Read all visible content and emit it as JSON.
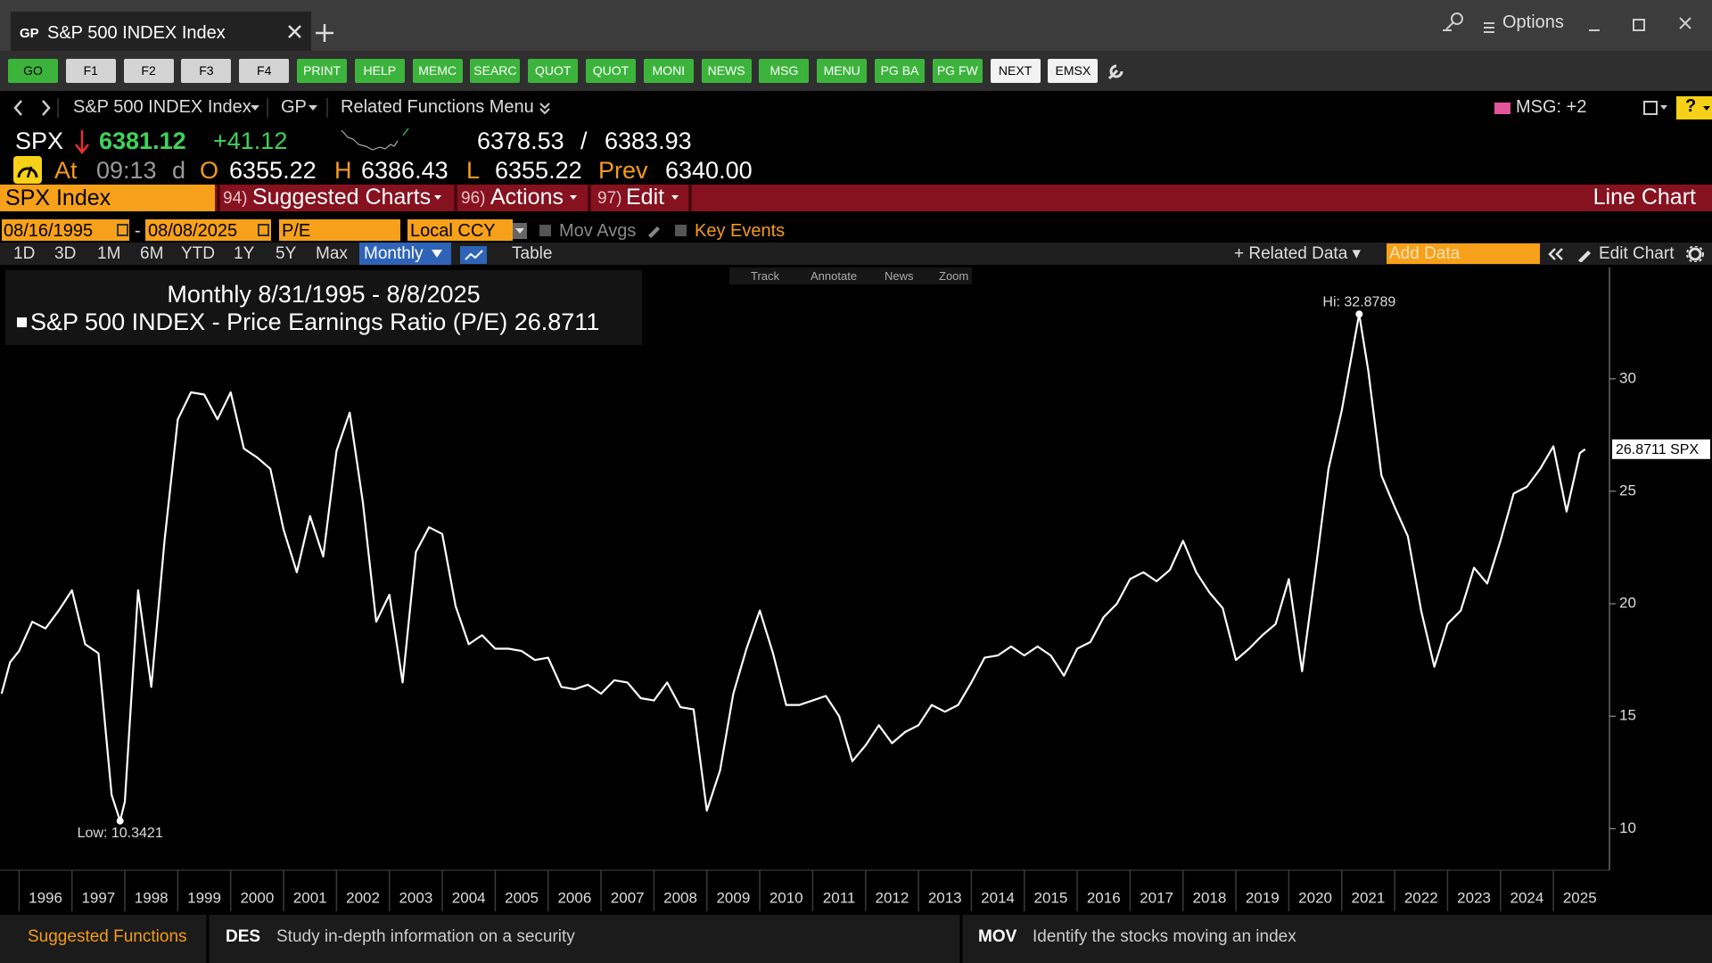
{
  "window": {
    "tab_code": "GP",
    "tab_title": "S&P 500 INDEX Index",
    "options": "Options"
  },
  "toolbar": [
    "GO",
    "F1",
    "F2",
    "F3",
    "F4",
    "PRINT",
    "HELP",
    "MEMC",
    "SEARC",
    "QUOT",
    "QUOT",
    "MONI",
    "NEWS",
    "MSG",
    "MENU",
    "PG BA",
    "PG FW",
    "NEXT",
    "EMSX"
  ],
  "nav": {
    "security": "S&P 500 INDEX Index",
    "function": "GP",
    "menu": "Related Functions Menu",
    "messages": "MSG: +2"
  },
  "quote": {
    "ticker": "SPX",
    "last": "6381.12",
    "change": "+41.12",
    "bid": "6378.53",
    "separator": "/",
    "ask": "6383.93",
    "at": "At",
    "time": "09:13",
    "day": "d",
    "open_label": "O",
    "open": "6355.22",
    "high_label": "H",
    "high": "6386.43",
    "low_label": "L",
    "low": "6355.22",
    "prev_label": "Prev",
    "prev": "6340.00"
  },
  "menu_bar": {
    "security": "SPX Index",
    "items": [
      {
        "number": "94)",
        "label": "Suggested Charts"
      },
      {
        "number": "96)",
        "label": "Actions"
      },
      {
        "number": "97)",
        "label": "Edit"
      }
    ],
    "chart_type": "Line Chart"
  },
  "controls": {
    "start_date": "08/16/1995",
    "date_separator": "-",
    "end_date": "08/08/2025",
    "field": "P/E",
    "currency": "Local CCY",
    "moving_averages": "Mov Avgs",
    "key_events": "Key Events",
    "periods": [
      "1D",
      "3D",
      "1M",
      "6M",
      "YTD",
      "1Y",
      "5Y",
      "Max"
    ],
    "frequency": "Monthly",
    "table": "Table",
    "related_data": "Related Data",
    "add_data": "Add Data",
    "edit_chart": "Edit Chart"
  },
  "chart_tools": [
    "Track",
    "Annotate",
    "News",
    "Zoom"
  ],
  "chart_data": {
    "type": "line",
    "subtitle": "Monthly 8/31/1995 - 8/8/2025",
    "x": [
      1995.67,
      1995.83,
      1996,
      1996.25,
      1996.5,
      1996.75,
      1997,
      1997.25,
      1997.5,
      1997.75,
      1997.91,
      1998,
      1998.25,
      1998.5,
      1998.75,
      1999,
      1999.25,
      1999.5,
      1999.75,
      2000,
      2000.25,
      2000.5,
      2000.75,
      2001,
      2001.25,
      2001.5,
      2001.75,
      2002,
      2002.25,
      2002.5,
      2002.75,
      2003,
      2003.25,
      2003.5,
      2003.75,
      2004,
      2004.25,
      2004.5,
      2004.75,
      2005,
      2005.25,
      2005.5,
      2005.75,
      2006,
      2006.25,
      2006.5,
      2006.75,
      2007,
      2007.25,
      2007.5,
      2007.75,
      2008,
      2008.25,
      2008.5,
      2008.75,
      2009,
      2009.25,
      2009.5,
      2009.75,
      2010,
      2010.25,
      2010.5,
      2010.75,
      2011,
      2011.25,
      2011.5,
      2011.75,
      2012,
      2012.25,
      2012.5,
      2012.75,
      2013,
      2013.25,
      2013.5,
      2013.75,
      2014,
      2014.25,
      2014.5,
      2014.75,
      2015,
      2015.25,
      2015.5,
      2015.75,
      2016,
      2016.25,
      2016.5,
      2016.75,
      2017,
      2017.25,
      2017.5,
      2017.75,
      2018,
      2018.25,
      2018.5,
      2018.75,
      2019,
      2019.25,
      2019.5,
      2019.75,
      2020,
      2020.25,
      2020.5,
      2020.75,
      2021,
      2021.33,
      2021.5,
      2021.75,
      2022,
      2022.25,
      2022.5,
      2022.75,
      2023,
      2023.25,
      2023.5,
      2023.75,
      2024,
      2024.25,
      2024.5,
      2024.75,
      2025,
      2025.25,
      2025.5,
      2025.6
    ],
    "series": [
      {
        "name": "S&P 500 INDEX - Price Earnings Ratio (P/E)",
        "color": "#ffffff",
        "values": [
          16.0,
          17.4,
          17.9,
          19.2,
          18.9,
          19.7,
          20.6,
          18.2,
          17.8,
          11.5,
          10.3421,
          11.2,
          20.6,
          16.3,
          22.8,
          28.2,
          29.4,
          29.3,
          28.2,
          29.4,
          26.9,
          26.5,
          26.0,
          23.3,
          21.4,
          23.9,
          22.1,
          26.8,
          28.5,
          24.5,
          19.2,
          20.4,
          16.5,
          22.3,
          23.4,
          23.1,
          19.9,
          18.2,
          18.6,
          18.0,
          18.0,
          17.9,
          17.5,
          17.6,
          16.3,
          16.2,
          16.4,
          16.0,
          16.6,
          16.5,
          15.8,
          15.7,
          16.5,
          15.4,
          15.3,
          10.8,
          12.6,
          16.0,
          18.0,
          19.7,
          17.8,
          15.5,
          15.5,
          15.7,
          15.9,
          15.0,
          13.0,
          13.7,
          14.6,
          13.8,
          14.3,
          14.6,
          15.5,
          15.2,
          15.5,
          16.5,
          17.6,
          17.7,
          18.1,
          17.7,
          18.1,
          17.7,
          16.8,
          18.0,
          18.3,
          19.4,
          20.0,
          21.1,
          21.4,
          21.0,
          21.5,
          22.8,
          21.4,
          20.5,
          19.8,
          17.5,
          18.0,
          18.6,
          19.1,
          21.1,
          17.0,
          21.4,
          26.0,
          28.6,
          32.8789,
          30.4,
          25.7,
          24.3,
          23.0,
          19.7,
          17.2,
          19.1,
          19.7,
          21.6,
          20.9,
          22.8,
          24.9,
          25.2,
          26.0,
          27.0,
          24.1,
          26.7,
          26.8711
        ]
      }
    ],
    "legend_value": "26.8711",
    "last_label": "26.8711 SPX",
    "annotations": {
      "high": "Hi: 32.8789",
      "low": "Low: 10.3421"
    },
    "xlim": [
      1995.64,
      2026.06
    ],
    "xticks": [
      1996,
      1997,
      1998,
      1999,
      2000,
      2001,
      2002,
      2003,
      2004,
      2005,
      2006,
      2007,
      2008,
      2009,
      2010,
      2011,
      2012,
      2013,
      2014,
      2015,
      2016,
      2017,
      2018,
      2019,
      2020,
      2021,
      2022,
      2023,
      2024,
      2025
    ],
    "ylim": [
      8.15,
      34.95
    ],
    "yticks": [
      10,
      15,
      20,
      25,
      30
    ],
    "y_axis_side": "right",
    "grid": false
  },
  "footer": {
    "title": "Suggested Functions",
    "functions": [
      {
        "code": "DES",
        "description": "Study in-depth information on a security"
      },
      {
        "code": "MOV",
        "description": "Identify the stocks moving an index"
      }
    ]
  }
}
